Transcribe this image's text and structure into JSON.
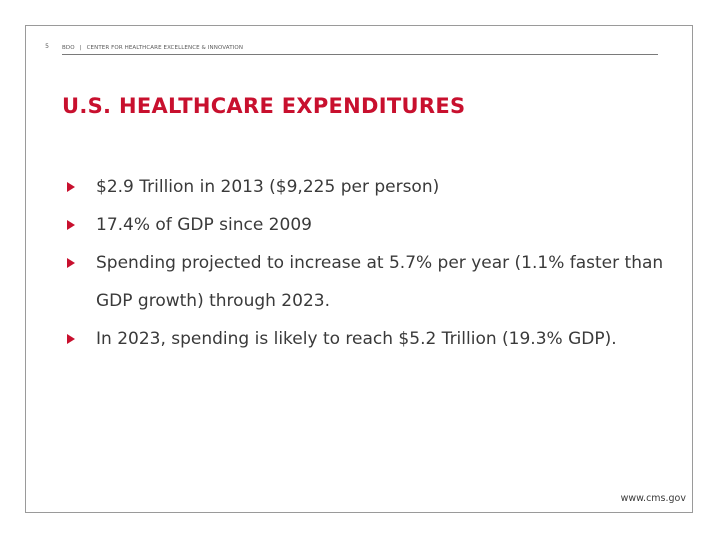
{
  "header": {
    "page_number": "5",
    "brand": "BDO",
    "separator": "|",
    "section": "CENTER FOR HEALTHCARE EXCELLENCE & INNOVATION"
  },
  "title": "U.S. HEALTHCARE EXPENDITURES",
  "bullets": [
    "$2.9 Trillion in 2013  ($9,225 per person)",
    "17.4% of GDP since 2009",
    "Spending projected to increase at 5.7% per year (1.1% faster than GDP growth) through 2023.",
    "In 2023, spending is likely to reach $5.2 Trillion (19.3% GDP)."
  ],
  "footer": {
    "source": "www.cms.gov"
  },
  "colors": {
    "accent": "#c8102e",
    "text": "#3a3a3a",
    "frame": "#9a9a9a"
  }
}
